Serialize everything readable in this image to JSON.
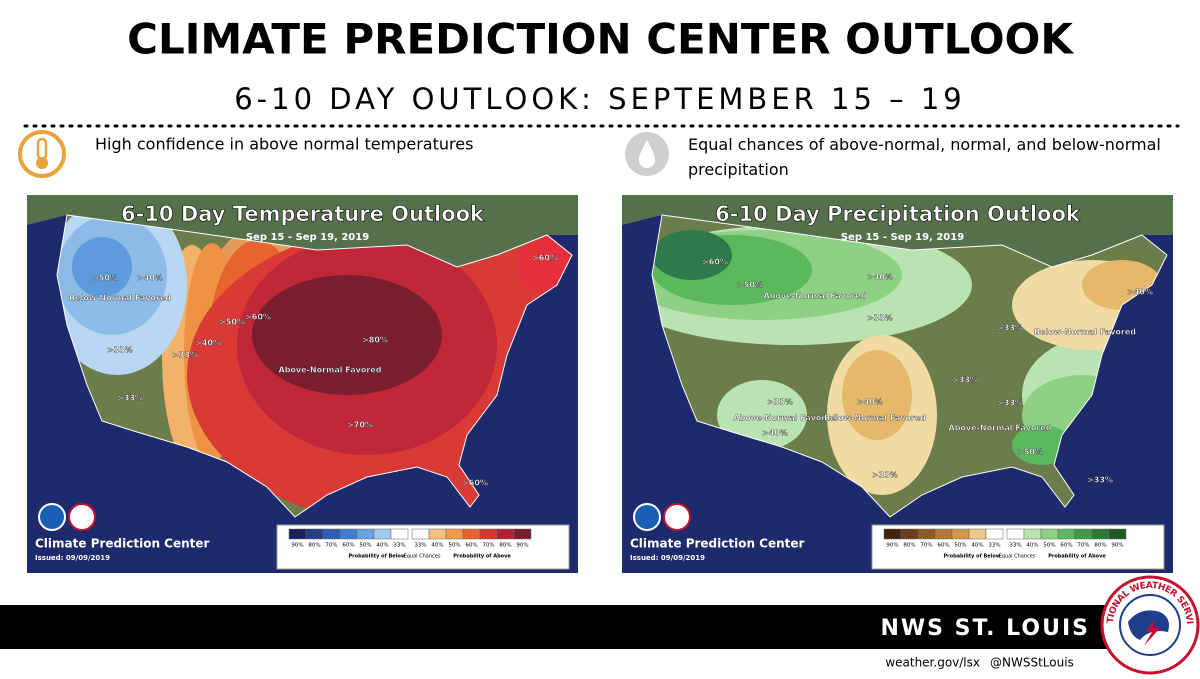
{
  "header": {
    "title": "CLIMATE PREDICTION CENTER OUTLOOK",
    "subtitle": "6-10 DAY OUTLOOK: SEPTEMBER 15 – 19"
  },
  "panels": [
    {
      "caption": "High confidence in above normal temperatures",
      "map_title": "6-10 Day Temperature Outlook",
      "dates": "Sep 15 - Sep 19, 2019",
      "labels": [
        ">50%",
        ">40%",
        "Below-Normal Favored",
        ">33%",
        ">33%",
        ">40%",
        ">50%",
        ">60%",
        ">80%",
        "Above-Normal Favored",
        ">70%",
        ">60%",
        ">60%",
        ">33%"
      ],
      "agency": "Climate Prediction Center",
      "issued": "Issued: 09/09/2019",
      "legend": {
        "labels": [
          "90%",
          "80%",
          "70%",
          "60%",
          "50%",
          "40%",
          "33%",
          "33%",
          "40%",
          "50%",
          "60%",
          "70%",
          "80%",
          "90%"
        ],
        "colors": [
          "#1a1f5e",
          "#263d8a",
          "#2f5fb0",
          "#3f7fcf",
          "#6aa3e0",
          "#a5c8ee",
          "#ffffff",
          "#ffffff",
          "#f5c27a",
          "#f09a4a",
          "#e8642e",
          "#d63a2e",
          "#b32232",
          "#7a1c2b"
        ],
        "equal": "Equal Chances",
        "below": "Probability of Below",
        "above": "Probability of Above"
      }
    },
    {
      "caption": "Equal chances of above-normal, normal, and below-normal precipitation",
      "map_title": "6-10 Day Precipitation Outlook",
      "dates": "Sep 15 - Sep 19, 2019",
      "labels": [
        ">60%",
        ">50%",
        "Above-Normal Favored",
        ">40%",
        ">33%",
        ">40%",
        ">33%",
        "Below-Normal Favored",
        ">33%",
        ">33%",
        "Above-Normal Favored",
        ">40%",
        ">40%",
        "Below-Normal Favored",
        ">33%",
        ">33%",
        "Above-Normal Favored",
        ">50%",
        ">33%"
      ],
      "agency": "Climate Prediction Center",
      "issued": "Issued: 09/09/2019",
      "legend": {
        "labels": [
          "90%",
          "80%",
          "70%",
          "60%",
          "50%",
          "40%",
          "33%",
          "33%",
          "40%",
          "50%",
          "60%",
          "70%",
          "80%",
          "90%"
        ],
        "colors": [
          "#3d2410",
          "#6b3d1a",
          "#8f5a26",
          "#b07a33",
          "#cf9b4b",
          "#e9c98a",
          "#ffffff",
          "#ffffff",
          "#b9e3b0",
          "#8ed184",
          "#5cb85c",
          "#3e9a45",
          "#2c7a35",
          "#1d5a27"
        ],
        "equal": "Equal Chances",
        "below": "Probability of Below",
        "above": "Probability of Above"
      }
    }
  ],
  "footer": {
    "office": "NWS ST. LOUIS",
    "website": "weather.gov/lsx",
    "twitter": "@NWSStLouis",
    "logo": "NATIONAL WEATHER SERVICE"
  }
}
